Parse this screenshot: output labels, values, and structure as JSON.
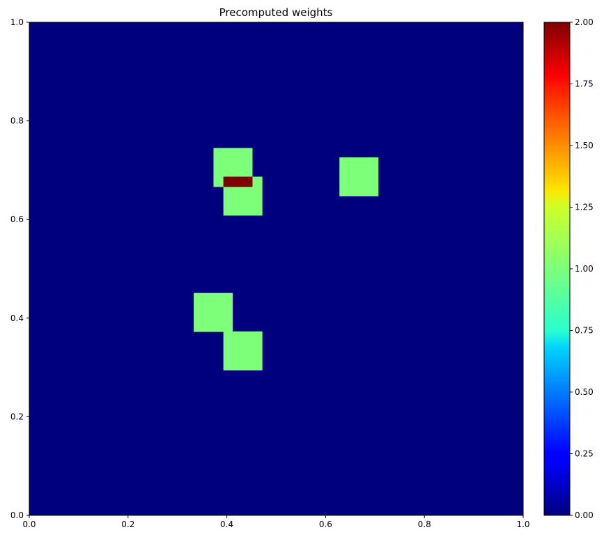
{
  "chart_data": {
    "type": "heatmap",
    "title": "Precomputed weights",
    "xlabel": "",
    "ylabel": "",
    "xlim": [
      0,
      1
    ],
    "ylim": [
      0,
      1
    ],
    "xticks": [
      "0.0",
      "0.2",
      "0.4",
      "0.6",
      "0.8",
      "1.0"
    ],
    "yticks": [
      "0.0",
      "0.2",
      "0.4",
      "0.6",
      "0.8",
      "1.0"
    ],
    "colormap": "jet",
    "clim": [
      0,
      2
    ],
    "colorbar_ticks": [
      "0.00",
      "0.25",
      "0.50",
      "0.75",
      "1.00",
      "1.25",
      "1.50",
      "1.75",
      "2.00"
    ],
    "grid": false,
    "background_value": 0,
    "regions": [
      {
        "x0": 0.373,
        "x1": 0.452,
        "y0": 0.666,
        "y1": 0.745,
        "value": 1
      },
      {
        "x0": 0.393,
        "x1": 0.472,
        "y0": 0.608,
        "y1": 0.687,
        "value": 1
      },
      {
        "x0": 0.393,
        "x1": 0.452,
        "y0": 0.666,
        "y1": 0.687,
        "value": 2
      },
      {
        "x0": 0.628,
        "x1": 0.707,
        "y0": 0.647,
        "y1": 0.726,
        "value": 1
      },
      {
        "x0": 0.333,
        "x1": 0.412,
        "y0": 0.372,
        "y1": 0.451,
        "value": 1
      },
      {
        "x0": 0.393,
        "x1": 0.472,
        "y0": 0.294,
        "y1": 0.373,
        "value": 1
      }
    ],
    "colors": {
      "background": "#00007f",
      "value_1": "#7dff7a",
      "value_2": "#7f0000"
    }
  }
}
